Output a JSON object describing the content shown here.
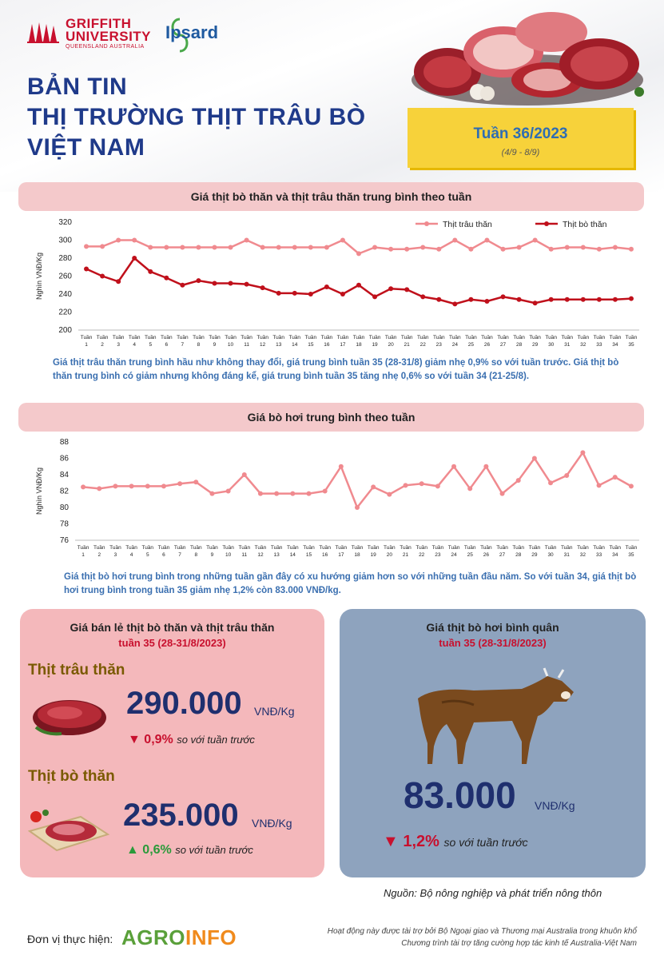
{
  "header": {
    "logo_griffith_line1": "GRIFFITH",
    "logo_griffith_line2": "UNIVERSITY",
    "logo_griffith_sub": "QUEENSLAND AUSTRALIA",
    "logo_ipsard": "Ipsard",
    "title_line1": "BẢN TIN",
    "title_line2": "THỊ TRƯỜNG THỊT TRÂU BÒ",
    "title_line3": "VIỆT NAM",
    "week_title": "Tuần 36/2023",
    "week_dates": "(4/9 - 8/9)"
  },
  "section1": {
    "band_title": "Giá thịt bò thăn và thịt trâu thăn trung bình theo tuần",
    "description": "Giá thịt trâu thăn trung bình hầu như không thay đổi, giá trung bình tuần 35 (28-31/8) giảm nhẹ 0,9% so với tuần trước. Giá thịt bò thăn trung bình có giảm nhưng không đáng kể, giá trung bình tuần 35 tăng nhẹ 0,6% so với tuần 34 (21-25/8)."
  },
  "section2": {
    "band_title": "Giá bò hơi trung bình theo tuần",
    "description": "Giá thịt bò hơi trung bình trong những tuần gần đây có xu hướng giảm hơn so với những tuần đầu năm. So với tuần 34, giá thịt bò hơi trung bình trong tuần 35 giảm nhẹ 1,2% còn 83.000 VNĐ/kg."
  },
  "chart_data": [
    {
      "type": "line",
      "title": "",
      "ylabel": "Nghìn VNĐ/Kg",
      "xlabel": "",
      "ylim": [
        200,
        320
      ],
      "yticks": [
        200,
        220,
        240,
        260,
        280,
        300,
        320
      ],
      "tick_prefix": "Tuần",
      "categories": [
        "1",
        "2",
        "3",
        "4",
        "5",
        "6",
        "7",
        "8",
        "9",
        "10",
        "11",
        "12",
        "13",
        "14",
        "15",
        "16",
        "17",
        "18",
        "19",
        "20",
        "21",
        "22",
        "23",
        "24",
        "25",
        "26",
        "27",
        "28",
        "29",
        "30",
        "31",
        "32",
        "33",
        "34",
        "35"
      ],
      "legend_position": "top-right",
      "grid": false,
      "series": [
        {
          "name": "Thịt trâu thăn",
          "color": "#f08a8f",
          "values": [
            293,
            293,
            300,
            300,
            292,
            292,
            292,
            292,
            292,
            292,
            300,
            292,
            292,
            292,
            292,
            292,
            300,
            285,
            292,
            290,
            290,
            292,
            290,
            300,
            290,
            300,
            290,
            292,
            300,
            290,
            292,
            292,
            290,
            292,
            290
          ]
        },
        {
          "name": "Thịt bò thăn",
          "color": "#c0101b",
          "values": [
            268,
            260,
            254,
            280,
            265,
            258,
            250,
            255,
            252,
            252,
            251,
            247,
            241,
            241,
            240,
            248,
            240,
            250,
            237,
            246,
            245,
            237,
            234,
            229,
            234,
            232,
            237,
            234,
            230,
            234,
            234,
            234,
            234,
            234,
            235
          ]
        }
      ]
    },
    {
      "type": "line",
      "title": "",
      "ylabel": "Nghìn VNĐ/Kg",
      "xlabel": "",
      "ylim": [
        76,
        88
      ],
      "yticks": [
        76,
        78,
        80,
        82,
        84,
        86,
        88
      ],
      "tick_prefix": "Tuần",
      "categories": [
        "1",
        "2",
        "3",
        "4",
        "5",
        "6",
        "7",
        "8",
        "9",
        "10",
        "11",
        "12",
        "13",
        "14",
        "15",
        "16",
        "17",
        "18",
        "19",
        "20",
        "21",
        "22",
        "23",
        "24",
        "25",
        "26",
        "27",
        "28",
        "29",
        "30",
        "31",
        "32",
        "33",
        "34",
        "35"
      ],
      "grid": false,
      "series": [
        {
          "color": "#f08a8f",
          "values": [
            82.5,
            82.3,
            82.6,
            82.6,
            82.6,
            82.6,
            82.9,
            83.1,
            81.7,
            82.0,
            84.0,
            81.7,
            81.7,
            81.7,
            81.7,
            82.0,
            85.0,
            80.0,
            82.5,
            81.6,
            82.7,
            82.9,
            82.6,
            85.0,
            82.3,
            85.0,
            81.7,
            83.3,
            86.0,
            83.0,
            83.9,
            86.7,
            82.7,
            83.7,
            82.6
          ]
        }
      ]
    }
  ],
  "retail": {
    "title": "Giá bán lẻ thịt bò thăn và thịt trâu thăn",
    "subtitle": "tuần 35 (28-31/8/2023)",
    "buffalo_label": "Thịt trâu thăn",
    "buffalo_price": "290.000",
    "buffalo_unit": "VNĐ/Kg",
    "buffalo_change_arrow": "▼",
    "buffalo_change": "0,9%",
    "buffalo_note": "so với tuần trước",
    "beef_label": "Thịt bò thăn",
    "beef_price": "235.000",
    "beef_unit": "VNĐ/Kg",
    "beef_change_arrow": "▲",
    "beef_change": "0,6%",
    "beef_note": "so với tuần trước"
  },
  "live": {
    "title": "Giá thịt bò hơi bình quân",
    "subtitle": "tuần 35 (28-31/8/2023)",
    "price": "83.000",
    "unit": "VNĐ/Kg",
    "change_arrow": "▼",
    "change": "1,2%",
    "note": "so với tuần trước"
  },
  "source": "Nguồn: Bộ nông nghiệp và phát triển nông thôn",
  "footer": {
    "implementer_label": "Đơn vị thực hiện:",
    "agro_a": "AGRO",
    "agro_b": "INFO",
    "note_line1": "Hoạt động này được tài trợ bởi Bộ Ngoại giao và Thương mại Australia trong khuôn khổ",
    "note_line2": "Chương trình tài trợ tăng cường hợp tác kinh tế Australia-Việt Nam"
  },
  "colors": {
    "title_blue": "#1f3a8a",
    "band_pink": "#f4c9cb",
    "panel_pink": "#f4b8bb",
    "panel_blue": "#8ea3be",
    "down_red": "#c8102e",
    "up_green": "#2a9a3a",
    "week_yellow": "#f7d23a"
  }
}
